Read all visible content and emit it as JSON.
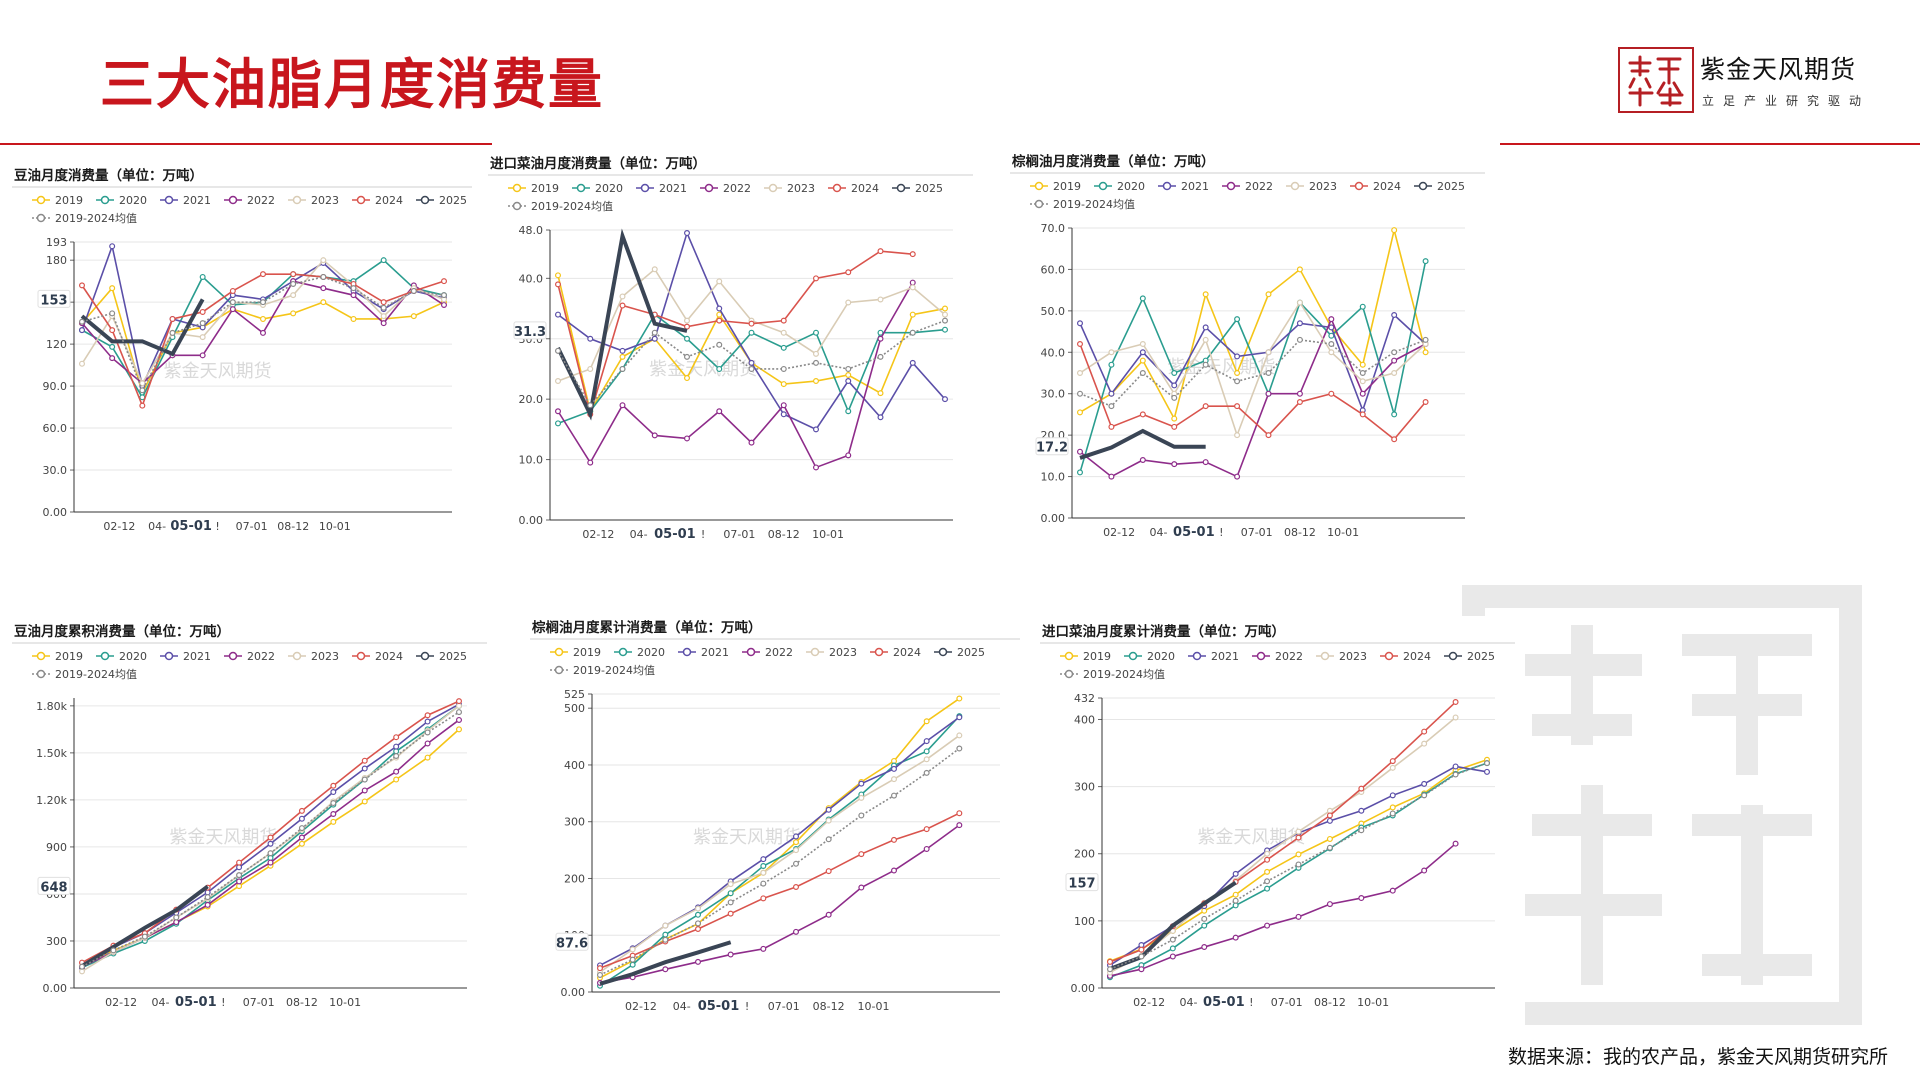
{
  "page": {
    "title": "三大油脂月度消费量",
    "source": "数据来源：我的农产品，紫金天风期货研究所",
    "logo_name": "紫金天风期货",
    "logo_slogan": "立足产业研究驱动",
    "colors": {
      "accent": "#c8161d"
    }
  },
  "legend_colors": {
    "2019": "#f5c518",
    "2020": "#2a9d8f",
    "2021": "#5b4fa8",
    "2022": "#8e2c8a",
    "2023": "#d9ccb5",
    "2024": "#d9544d",
    "2025": "#3a4555",
    "2019-2024均值": "#8a8a8a"
  },
  "chart_data": [
    {
      "id": "p1",
      "type": "line",
      "title": "豆油月度消费量（单位：万吨）",
      "watermark": "紫金天风期货",
      "legend": [
        "2019",
        "2020",
        "2021",
        "2022",
        "2023",
        "2024",
        "2025",
        "2019-2024均值"
      ],
      "x_tick_labels": [
        "02-12",
        "04-",
        "05-01",
        "!",
        "07-01",
        "08-12",
        "10-01"
      ],
      "ylim": [
        0,
        193
      ],
      "y_ticks": [
        "0.00",
        "30.0",
        "60.0",
        "90.0",
        "120",
        "150",
        "180",
        "193"
      ],
      "marker_value": "153",
      "series": [
        {
          "name": "2019",
          "values": [
            135,
            160,
            85,
            128,
            132,
            145,
            138,
            142,
            150,
            138,
            138,
            140,
            150
          ]
        },
        {
          "name": "2020",
          "values": [
            130,
            118,
            82,
            125,
            168,
            148,
            150,
            170,
            168,
            165,
            180,
            160,
            155
          ]
        },
        {
          "name": "2021",
          "values": [
            130,
            190,
            90,
            138,
            132,
            155,
            152,
            165,
            178,
            158,
            145,
            158,
            153
          ]
        },
        {
          "name": "2022",
          "values": [
            135,
            110,
            92,
            112,
            112,
            145,
            128,
            165,
            160,
            155,
            135,
            162,
            148
          ]
        },
        {
          "name": "2023",
          "values": [
            106,
            140,
            92,
            128,
            125,
            150,
            148,
            155,
            180,
            162,
            140,
            160,
            152
          ]
        },
        {
          "name": "2024",
          "values": [
            162,
            130,
            76,
            138,
            143,
            158,
            170,
            170,
            168,
            163,
            150,
            158,
            165
          ]
        },
        {
          "name": "2025",
          "values": [
            140,
            122,
            122,
            113,
            152
          ]
        },
        {
          "name": "2019-2024均值",
          "values": [
            136,
            142,
            87,
            128,
            135,
            150,
            150,
            163,
            168,
            160,
            146,
            158,
            155
          ]
        }
      ]
    },
    {
      "id": "p2",
      "type": "line",
      "title": "进口菜油月度消费量（单位：万吨）",
      "watermark": "紫金天风期货",
      "legend": [
        "2019",
        "2020",
        "2021",
        "2022",
        "2023",
        "2024",
        "2025",
        "2019-2024均值"
      ],
      "x_tick_labels": [
        "02-12",
        "04-",
        "05-01",
        "!",
        "07-01",
        "08-12",
        "10-01"
      ],
      "ylim": [
        0,
        48
      ],
      "y_ticks": [
        "0.00",
        "10.0",
        "20.0",
        "30.0",
        "40.0",
        "48.0"
      ],
      "marker_value": "31.3",
      "series": [
        {
          "name": "2019",
          "values": [
            40.5,
            18,
            27,
            30,
            23.5,
            34,
            26,
            22.5,
            23,
            24,
            21,
            34,
            35
          ]
        },
        {
          "name": "2020",
          "values": [
            16,
            18,
            25,
            34,
            30,
            25,
            31,
            28.5,
            31,
            18,
            31,
            31,
            31.5
          ]
        },
        {
          "name": "2021",
          "values": [
            34,
            30,
            28,
            30,
            47.5,
            35,
            26,
            17.5,
            15,
            23,
            17,
            26,
            20
          ]
        },
        {
          "name": "2022",
          "values": [
            18,
            9.5,
            19,
            14,
            13.5,
            18,
            12.8,
            19,
            8.7,
            10.7,
            30,
            39.3
          ]
        },
        {
          "name": "2023",
          "values": [
            23,
            25,
            37,
            41.5,
            33,
            39.5,
            33,
            31,
            27.5,
            36,
            36.5,
            38.5,
            34
          ]
        },
        {
          "name": "2024",
          "values": [
            39,
            17.5,
            35.5,
            34,
            32,
            33,
            32.5,
            33,
            40,
            41,
            44.5,
            44
          ]
        },
        {
          "name": "2025",
          "values": [
            28.5,
            17.5,
            47,
            32.5,
            31.3
          ]
        },
        {
          "name": "2019-2024均值",
          "values": [
            28,
            19,
            25,
            31,
            27,
            29,
            25,
            25,
            26,
            25,
            27,
            31,
            33
          ]
        }
      ]
    },
    {
      "id": "p3",
      "type": "line",
      "title": "棕榈油月度消费量（单位：万吨）",
      "watermark": "紫金天风期货",
      "legend": [
        "2019",
        "2020",
        "2021",
        "2022",
        "2023",
        "2024",
        "2025",
        "2019-2024均值"
      ],
      "x_tick_labels": [
        "02-12",
        "04-",
        "05-01",
        "!",
        "07-01",
        "08-12",
        "10-01"
      ],
      "ylim": [
        0,
        70
      ],
      "y_ticks": [
        "0.00",
        "10.0",
        "20.0",
        "30.0",
        "40.0",
        "50.0",
        "60.0",
        "70.0"
      ],
      "marker_value": "17.2",
      "series": [
        {
          "name": "2019",
          "values": [
            25.5,
            30,
            38,
            24,
            54,
            35,
            54,
            60,
            46,
            37,
            69.5,
            40
          ]
        },
        {
          "name": "2020",
          "values": [
            11,
            37,
            53,
            35,
            38,
            48,
            30,
            52,
            44,
            51,
            25,
            62
          ]
        },
        {
          "name": "2021",
          "values": [
            47,
            30,
            40,
            32,
            46,
            39,
            40,
            47,
            46,
            26,
            49,
            42
          ]
        },
        {
          "name": "2022",
          "values": [
            16,
            10,
            14,
            13,
            13.5,
            10,
            30,
            30,
            48,
            30,
            38,
            42
          ]
        },
        {
          "name": "2023",
          "values": [
            35,
            40,
            42,
            30,
            43,
            20,
            40,
            52,
            40,
            33,
            35,
            42
          ]
        },
        {
          "name": "2024",
          "values": [
            42,
            22,
            25,
            22,
            27,
            27,
            20,
            28,
            30,
            25,
            19,
            28
          ]
        },
        {
          "name": "2025",
          "values": [
            14.5,
            17,
            21,
            17.2,
            17.2
          ]
        },
        {
          "name": "2019-2024均值",
          "values": [
            30,
            27,
            35,
            29,
            37,
            33,
            35,
            43,
            42,
            35,
            40,
            43
          ]
        }
      ]
    },
    {
      "id": "p4",
      "type": "line",
      "title": "豆油月度累积消费量（单位：万吨）",
      "watermark": "紫金天风期货",
      "legend": [
        "2019",
        "2020",
        "2021",
        "2022",
        "2023",
        "2024",
        "2025",
        "2019-2024均值"
      ],
      "x_tick_labels": [
        "02-12",
        "04-",
        "05-01",
        "!",
        "07-01",
        "08-12",
        "10-01"
      ],
      "ylim": [
        0,
        1850
      ],
      "y_ticks": [
        "0.00",
        "300",
        "600",
        "900",
        "1.20k",
        "1.50k",
        "1.80k"
      ],
      "marker_value": "648",
      "series": [
        {
          "name": "2019",
          "values": [
            135,
            240,
            320,
            420,
            520,
            650,
            780,
            920,
            1060,
            1190,
            1330,
            1470,
            1650
          ]
        },
        {
          "name": "2020",
          "values": [
            130,
            220,
            300,
            410,
            560,
            700,
            830,
            1000,
            1170,
            1330,
            1510,
            1650,
            1800
          ]
        },
        {
          "name": "2021",
          "values": [
            130,
            260,
            350,
            480,
            610,
            770,
            920,
            1080,
            1250,
            1400,
            1540,
            1700,
            1810
          ]
        },
        {
          "name": "2022",
          "values": [
            135,
            230,
            320,
            420,
            530,
            680,
            800,
            960,
            1110,
            1260,
            1380,
            1560,
            1710
          ]
        },
        {
          "name": "2023",
          "values": [
            106,
            230,
            320,
            450,
            570,
            720,
            860,
            1010,
            1190,
            1340,
            1470,
            1640,
            1800
          ]
        },
        {
          "name": "2024",
          "values": [
            162,
            270,
            350,
            500,
            640,
            800,
            960,
            1130,
            1290,
            1450,
            1600,
            1740,
            1830
          ]
        },
        {
          "name": "2025",
          "values": [
            140,
            262,
            384,
            497,
            648
          ]
        },
        {
          "name": "2019-2024均值",
          "values": [
            136,
            240,
            328,
            450,
            580,
            720,
            860,
            1020,
            1180,
            1330,
            1480,
            1630,
            1760
          ]
        }
      ]
    },
    {
      "id": "p5",
      "type": "line",
      "title": "棕榈油月度累计消费量（单位：万吨）",
      "watermark": "紫金天风期货",
      "legend": [
        "2019",
        "2020",
        "2021",
        "2022",
        "2023",
        "2024",
        "2025",
        "2019-2024均值"
      ],
      "x_tick_labels": [
        "02-12",
        "04-",
        "05-01",
        "!",
        "07-01",
        "08-12",
        "10-01"
      ],
      "ylim": [
        0,
        525
      ],
      "y_ticks": [
        "0.00",
        "100",
        "200",
        "300",
        "400",
        "500",
        "525"
      ],
      "marker_value": "87.6",
      "series": [
        {
          "name": "2019",
          "values": [
            25,
            55,
            93,
            120,
            174,
            210,
            264,
            324,
            370,
            407,
            477,
            517
          ]
        },
        {
          "name": "2020",
          "values": [
            11,
            48,
            101,
            136,
            174,
            222,
            252,
            304,
            348,
            399,
            424,
            486
          ]
        },
        {
          "name": "2021",
          "values": [
            47,
            77,
            117,
            149,
            195,
            234,
            274,
            321,
            367,
            393,
            442,
            484
          ]
        },
        {
          "name": "2022",
          "values": [
            16,
            26,
            40,
            53,
            66,
            76,
            106,
            136,
            184,
            214,
            252,
            294
          ]
        },
        {
          "name": "2023",
          "values": [
            35,
            75,
            117,
            147,
            190,
            210,
            250,
            302,
            342,
            375,
            410,
            452
          ]
        },
        {
          "name": "2024",
          "values": [
            42,
            64,
            89,
            111,
            138,
            165,
            185,
            213,
            243,
            268,
            287,
            315
          ]
        },
        {
          "name": "2025",
          "values": [
            14.5,
            31.5,
            52.5,
            69.7,
            87.6
          ]
        },
        {
          "name": "2019-2024均值",
          "values": [
            30,
            57,
            92,
            121,
            158,
            191,
            226,
            269,
            311,
            346,
            386,
            429
          ]
        }
      ]
    },
    {
      "id": "p6",
      "type": "line",
      "title": "进口菜油月度累计消费量（单位：万吨）",
      "watermark": "紫金天风期货",
      "legend": [
        "2019",
        "2020",
        "2021",
        "2022",
        "2023",
        "2024",
        "2025",
        "2019-2024均值"
      ],
      "x_tick_labels": [
        "02-12",
        "04-",
        "05-01",
        "!",
        "07-01",
        "08-12",
        "10-01"
      ],
      "ylim": [
        0,
        432
      ],
      "y_ticks": [
        "0.00",
        "100",
        "200",
        "300",
        "400",
        "432"
      ],
      "marker_value": "157",
      "series": [
        {
          "name": "2019",
          "values": [
            40,
            58,
            85,
            115,
            139,
            173,
            199,
            222,
            245,
            269,
            290,
            324,
            340
          ]
        },
        {
          "name": "2020",
          "values": [
            16,
            34,
            59,
            93,
            123,
            148,
            179,
            208,
            239,
            257,
            288,
            319,
            335
          ]
        },
        {
          "name": "2021",
          "values": [
            34,
            64,
            92,
            122,
            170,
            205,
            231,
            249,
            264,
            287,
            304,
            330,
            322
          ]
        },
        {
          "name": "2022",
          "values": [
            18,
            28,
            47,
            61,
            75,
            93,
            106,
            125,
            134,
            145,
            175,
            215
          ]
        },
        {
          "name": "2023",
          "values": [
            23,
            48,
            85,
            127,
            160,
            200,
            233,
            264,
            292,
            328,
            364,
            403
          ]
        },
        {
          "name": "2024",
          "values": [
            39,
            57,
            92,
            126,
            158,
            191,
            224,
            257,
            297,
            338,
            382,
            426
          ]
        },
        {
          "name": "2025",
          "values": [
            28.5,
            46,
            93,
            126,
            157
          ]
        },
        {
          "name": "2019-2024均值",
          "values": [
            28,
            47,
            72,
            103,
            130,
            159,
            184,
            209,
            235,
            260,
            287,
            318,
            335
          ]
        }
      ]
    }
  ]
}
